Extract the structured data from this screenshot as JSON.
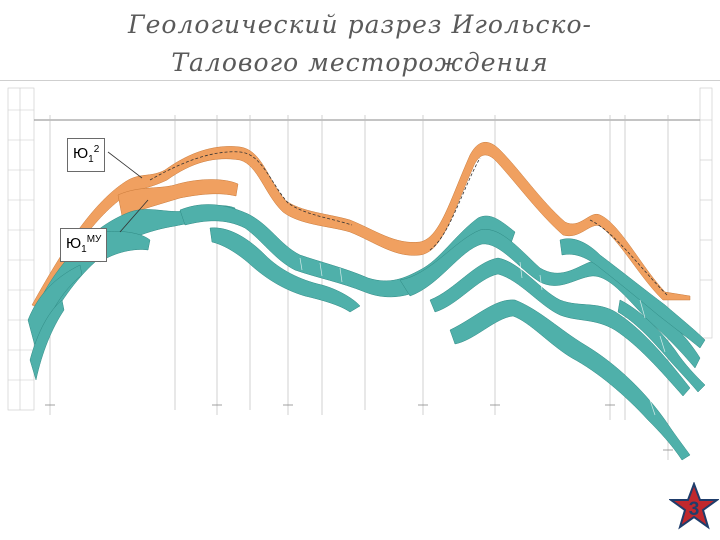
{
  "title": {
    "line1": "Геологический разрез Игольско-",
    "line2": "Талового месторождения"
  },
  "callouts": [
    {
      "base": "Ю",
      "sub": "1",
      "sup": "2"
    },
    {
      "base": "Ю",
      "sub": "1",
      "sup": "МУ"
    }
  ],
  "page_number": "3",
  "colors": {
    "layer_upper": "#f0a060",
    "layer_lower": "#4fb0aa",
    "badge_star": "#c0282d",
    "badge_ring": "#1f3d6b"
  }
}
